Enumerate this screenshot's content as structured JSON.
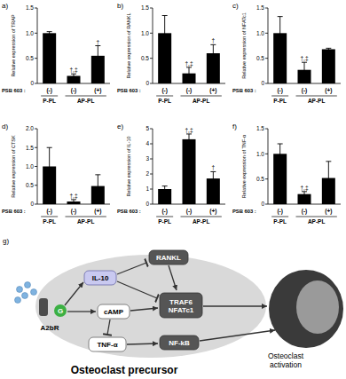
{
  "chart_data": [
    {
      "type": "bar",
      "title": "a)",
      "y_label": "Relative expression of TRAP",
      "x_label": "PSB 603 :",
      "categories": [
        "(-)",
        "(-)",
        "(+)"
      ],
      "groups": [
        {
          "label": "P-PL",
          "categories": [
            0
          ]
        },
        {
          "label": "AP-PL",
          "categories": [
            1,
            2
          ]
        }
      ],
      "values": [
        1.0,
        0.15,
        0.55
      ],
      "errors": [
        0.03,
        0.04,
        0.2
      ],
      "annotations": [
        null,
        "†,‡",
        "†"
      ],
      "color": "#000000",
      "ylim": [
        0,
        1.5
      ],
      "yticks": [
        0,
        0.5,
        {
          "value": 1,
          "label": "1.0"
        },
        1.5
      ],
      "grid": false
    },
    {
      "type": "bar",
      "title": "b)",
      "y_label": "Relative expression of RANKL",
      "x_label": "PSB 603 :",
      "categories": [
        "(-)",
        "(-)",
        "(+)"
      ],
      "groups": [
        {
          "label": "P-PL",
          "categories": [
            0
          ]
        },
        {
          "label": "AP-PL",
          "categories": [
            1,
            2
          ]
        }
      ],
      "values": [
        1.0,
        0.2,
        0.6
      ],
      "errors": [
        0.35,
        0.12,
        0.17
      ],
      "annotations": [
        null,
        "†,‡",
        "†"
      ],
      "color": "#000000",
      "ylim": [
        0,
        1.5
      ],
      "yticks": [
        0,
        0.5,
        {
          "value": 1,
          "label": "1.0"
        },
        1.5
      ],
      "grid": false
    },
    {
      "type": "bar",
      "title": "c)",
      "y_label": "Relative expression of NFATc1",
      "x_label": "PSB 603 :",
      "categories": [
        "(-)",
        "(-)",
        "(+)"
      ],
      "groups": [
        {
          "label": "P-PL",
          "categories": [
            0
          ]
        },
        {
          "label": "AP-PL",
          "categories": [
            1,
            2
          ]
        }
      ],
      "values": [
        1.0,
        0.27,
        0.68
      ],
      "errors": [
        0.33,
        0.15,
        0.02
      ],
      "annotations": [
        null,
        "†,‡",
        null
      ],
      "color": "#000000",
      "ylim": [
        0,
        1.5
      ],
      "yticks": [
        0,
        0.5,
        {
          "value": 1,
          "label": "1.0"
        },
        1.5
      ],
      "grid": false
    },
    {
      "type": "bar",
      "title": "d)",
      "y_label": "Relative expression of CTSK",
      "x_label": "PSB 603 :",
      "categories": [
        "(-)",
        "(-)",
        "(+)"
      ],
      "groups": [
        {
          "label": "P-PL",
          "categories": [
            0
          ]
        },
        {
          "label": "AP-PL",
          "categories": [
            1,
            2
          ]
        }
      ],
      "values": [
        1.0,
        0.07,
        0.48
      ],
      "errors": [
        0.5,
        0.05,
        0.3
      ],
      "annotations": [
        null,
        "†,‡",
        null
      ],
      "color": "#000000",
      "ylim": [
        0,
        2
      ],
      "yticks": [
        0,
        0.5,
        {
          "value": 1,
          "label": "1.0"
        },
        1.5,
        {
          "value": 2,
          "label": "2.0"
        }
      ],
      "grid": false
    },
    {
      "type": "bar",
      "title": "e)",
      "y_label": "Relative expression of IL-10",
      "x_label": "PSB 603 :",
      "categories": [
        "(-)",
        "(-)",
        "(+)"
      ],
      "groups": [
        {
          "label": "P-PL",
          "categories": [
            0
          ]
        },
        {
          "label": "AP-PL",
          "categories": [
            1,
            2
          ]
        }
      ],
      "values": [
        1.0,
        4.3,
        1.7
      ],
      "errors": [
        0.2,
        0.35,
        0.45
      ],
      "annotations": [
        null,
        "†,‡",
        "†"
      ],
      "color": "#000000",
      "ylim": [
        0,
        5
      ],
      "yticks": [
        0,
        1,
        2,
        3,
        4,
        5
      ],
      "grid": false
    },
    {
      "type": "bar",
      "title": "f)",
      "y_label": "Relative expression of TNF-α",
      "x_label": "PSB 603 :",
      "categories": [
        "(-)",
        "(-)",
        "(+)"
      ],
      "groups": [
        {
          "label": "P-PL",
          "categories": [
            0
          ]
        },
        {
          "label": "AP-PL",
          "categories": [
            1,
            2
          ]
        }
      ],
      "values": [
        1.0,
        0.2,
        0.52
      ],
      "errors": [
        0.2,
        0.05,
        0.33
      ],
      "annotations": [
        null,
        "†,‡",
        null
      ],
      "color": "#000000",
      "ylim": [
        0,
        1.5
      ],
      "yticks": [
        0,
        0.5,
        {
          "value": 1,
          "label": "1.0"
        },
        1.5
      ],
      "grid": false
    }
  ],
  "diagram": {
    "title": "g)",
    "nodes": [
      "A2bR",
      "G",
      "IL-10",
      "cAMP",
      "TNF-α",
      "RANKL",
      "TRAF6",
      "NFATc1",
      "NF-kB"
    ],
    "cell_labels": [
      "Osteoclast precursor",
      "Osteoclast activation"
    ]
  }
}
